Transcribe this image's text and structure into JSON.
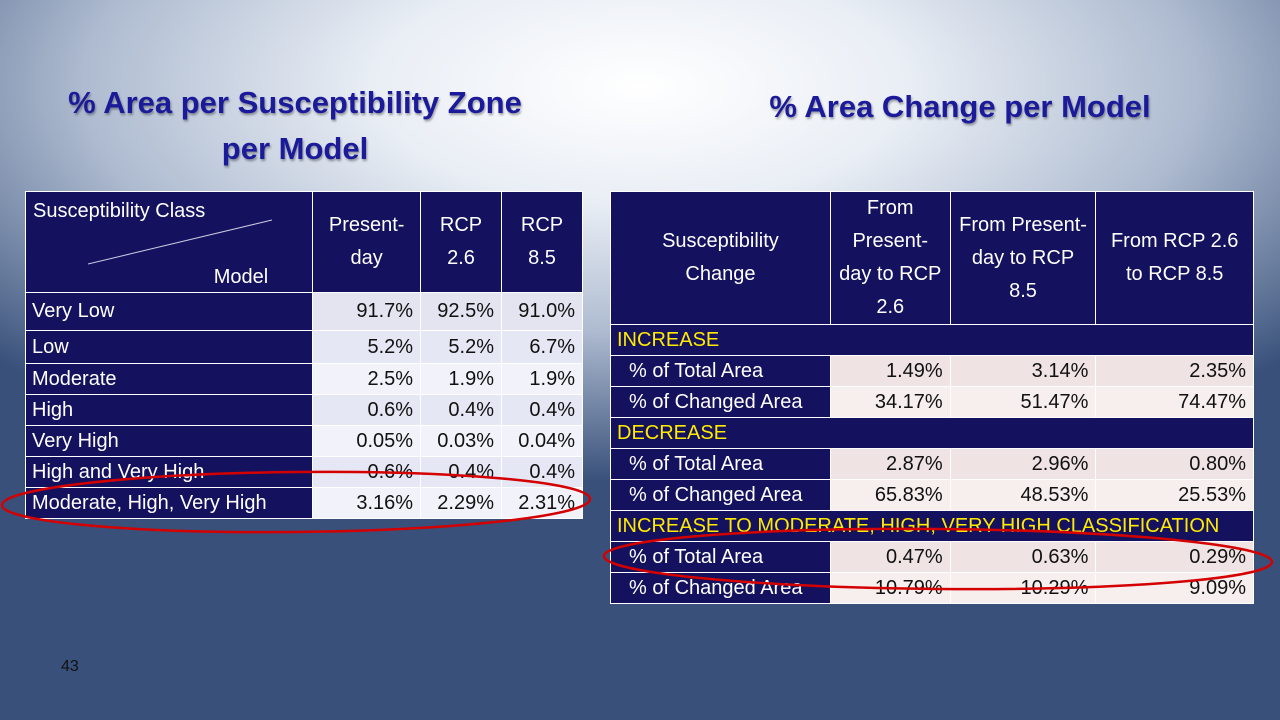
{
  "slide": {
    "title_left": "% Area per Susceptibility Zone per Model",
    "title_right": "% Area Change per Model",
    "number": "43"
  },
  "left_table": {
    "header": {
      "corner_top": "Susceptibility Class",
      "corner_bottom": "Model",
      "col1": "Present-day",
      "col2": "RCP 2.6",
      "col3": "RCP 8.5"
    },
    "rows": [
      {
        "label": "Very Low",
        "v1": "91.7%",
        "v2": "92.5%",
        "v3": "91.0%"
      },
      {
        "label": "Low",
        "v1": "5.2%",
        "v2": "5.2%",
        "v3": "6.7%"
      },
      {
        "label": "Moderate",
        "v1": "2.5%",
        "v2": "1.9%",
        "v3": "1.9%"
      },
      {
        "label": "High",
        "v1": "0.6%",
        "v2": "0.4%",
        "v3": "0.4%"
      },
      {
        "label": "Very High",
        "v1": "0.05%",
        "v2": "0.03%",
        "v3": "0.04%"
      },
      {
        "label": "High and Very High",
        "v1": "0.6%",
        "v2": "0.4%",
        "v3": "0.4%"
      },
      {
        "label": "Moderate, High, Very High",
        "v1": "3.16%",
        "v2": "2.29%",
        "v3": "2.31%"
      }
    ]
  },
  "right_table": {
    "header": {
      "col0": "Susceptibility Change",
      "col1": "From Present-day to RCP 2.6",
      "col2": "From Present-day to RCP 8.5",
      "col3": "From RCP 2.6 to RCP 8.5"
    },
    "sections": [
      {
        "title": "INCREASE",
        "rows": [
          {
            "label": "% of Total Area",
            "v1": "1.49%",
            "v2": "3.14%",
            "v3": "2.35%"
          },
          {
            "label": "% of Changed Area",
            "v1": "34.17%",
            "v2": "51.47%",
            "v3": "74.47%"
          }
        ]
      },
      {
        "title": "DECREASE",
        "rows": [
          {
            "label": "% of Total Area",
            "v1": "2.87%",
            "v2": "2.96%",
            "v3": "0.80%"
          },
          {
            "label": "% of Changed Area",
            "v1": "65.83%",
            "v2": "48.53%",
            "v3": "25.53%"
          }
        ]
      },
      {
        "title": "INCREASE TO MODERATE, HIGH, VERY HIGH CLASSIFICATION",
        "rows": [
          {
            "label": "% of Total Area",
            "v1": "0.47%",
            "v2": "0.63%",
            "v3": "0.29%"
          },
          {
            "label": "% of Changed Area",
            "v1": "10.79%",
            "v2": "10.29%",
            "v3": "9.09%"
          }
        ]
      }
    ]
  },
  "colors": {
    "header_bg": "#14115e",
    "section_title": "#ffea00",
    "title": "#1a1a9a",
    "highlight": "#d40000"
  }
}
